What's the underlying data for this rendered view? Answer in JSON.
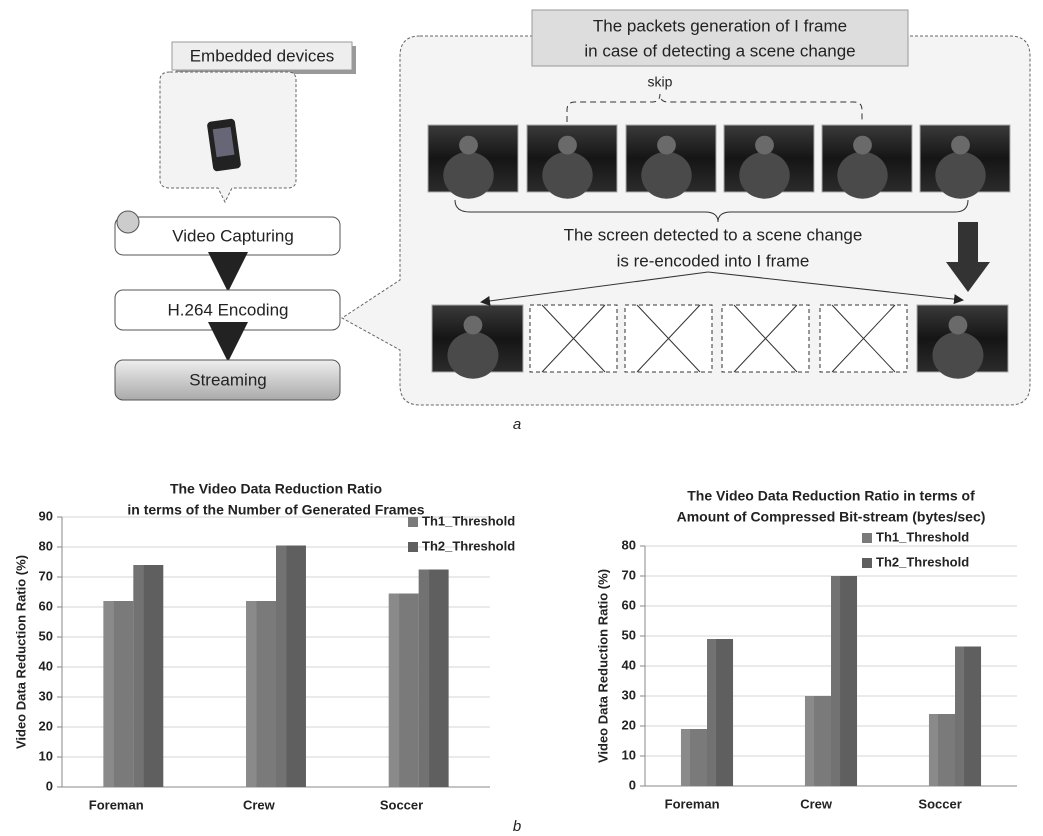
{
  "diagram": {
    "embedded_devices": "Embedded devices",
    "steps": [
      "Video Capturing",
      "H.264 Encoding",
      "Streaming"
    ],
    "note_top": [
      "The packets generation of I frame",
      "in case of detecting a scene change"
    ],
    "skip": "skip",
    "note_mid": [
      "The screen detected to a scene change",
      "is re-encoded into I frame"
    ],
    "caption": "a"
  },
  "caption": "b",
  "chart_data": [
    {
      "type": "bar",
      "title": [
        "The Video Data Reduction Ratio",
        "in terms of the Number of Generated Frames"
      ],
      "y_label": "Video Data Reduction Ratio (%)",
      "categories": [
        "Foreman",
        "Crew",
        "Soccer"
      ],
      "series": [
        {
          "name": "Th1_Threshold",
          "color": "#7a7a7a",
          "values": [
            62,
            62,
            64.5
          ]
        },
        {
          "name": "Th2_Threshold",
          "color": "#5f5f5f",
          "values": [
            74,
            80.5,
            72.5
          ]
        }
      ],
      "ylim": [
        0,
        90
      ],
      "yticks": [
        0,
        10,
        20,
        30,
        40,
        50,
        60,
        70,
        80,
        90
      ],
      "grid": true,
      "legend": "upper right"
    },
    {
      "type": "bar",
      "title": [
        "The Video Data Reduction Ratio in terms of",
        "Amount of Compressed Bit-stream (bytes/sec)"
      ],
      "y_label": "Video Data Reduction Ratio (%)",
      "categories": [
        "Foreman",
        "Crew",
        "Soccer"
      ],
      "series": [
        {
          "name": "Th1_Threshold",
          "color": "#7a7a7a",
          "values": [
            19,
            30,
            24
          ]
        },
        {
          "name": "Th2_Threshold",
          "color": "#5f5f5f",
          "values": [
            49,
            70,
            46.5
          ]
        }
      ],
      "ylim": [
        0,
        80
      ],
      "yticks": [
        0,
        10,
        20,
        30,
        40,
        50,
        60,
        70,
        80
      ],
      "grid": true,
      "legend": "upper right"
    }
  ]
}
